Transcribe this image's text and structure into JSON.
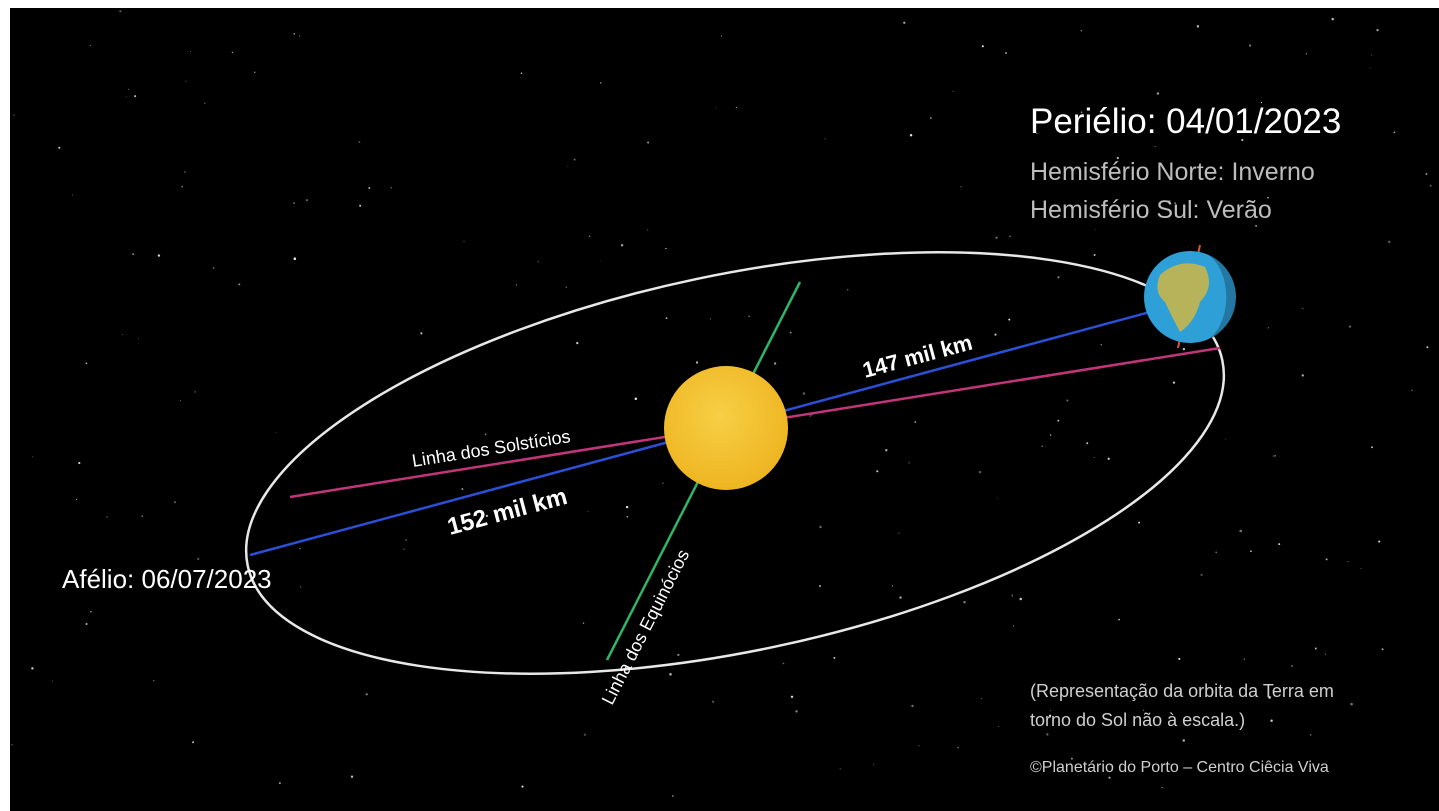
{
  "perihelion": {
    "title": "Periélio: 04/01/2023",
    "north": "Hemisfério Norte: Inverno",
    "south": "Hemisfério Sul: Verão",
    "distance": "147 mil km"
  },
  "aphelion": {
    "title": "Afélio: 06/07/2023",
    "distance": "152 mil km"
  },
  "lines": {
    "solstices": "Linha dos Solstícios",
    "equinoxes": "Linha dos Equinócios"
  },
  "note": [
    "(Representação da orbita da Terra em",
    "torno do Sol não à escala.)"
  ],
  "credit": "©Planetário do Porto – Centro Ciêcia Viva"
}
